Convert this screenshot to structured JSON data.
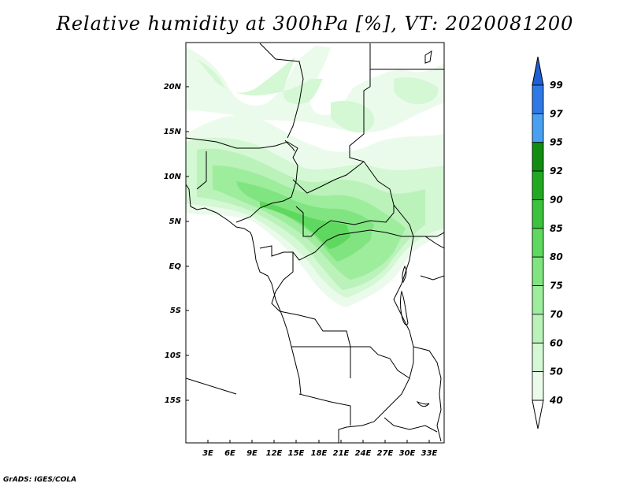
{
  "title": "Relative humidity at 300hPa [%], VT: 2020081200",
  "credit": "GrADS: IGES/COLA",
  "map": {
    "lat_labels": [
      "20N",
      "15N",
      "10N",
      "5N",
      "EQ",
      "5S",
      "10S",
      "15S"
    ],
    "lon_labels": [
      "3E",
      "6E",
      "9E",
      "12E",
      "15E",
      "18E",
      "21E",
      "24E",
      "27E",
      "30E",
      "33E"
    ]
  },
  "colorbar": {
    "labels": [
      "99",
      "97",
      "95",
      "92",
      "90",
      "85",
      "80",
      "75",
      "70",
      "60",
      "50",
      "40"
    ],
    "colors": [
      "#1f5fd6",
      "#2e79e6",
      "#4aa0f0",
      "#118d11",
      "#22a922",
      "#3dc23d",
      "#5ed85e",
      "#80e480",
      "#9ded9d",
      "#baf2ba",
      "#d4f7d4",
      "#ebfbeb"
    ]
  }
}
